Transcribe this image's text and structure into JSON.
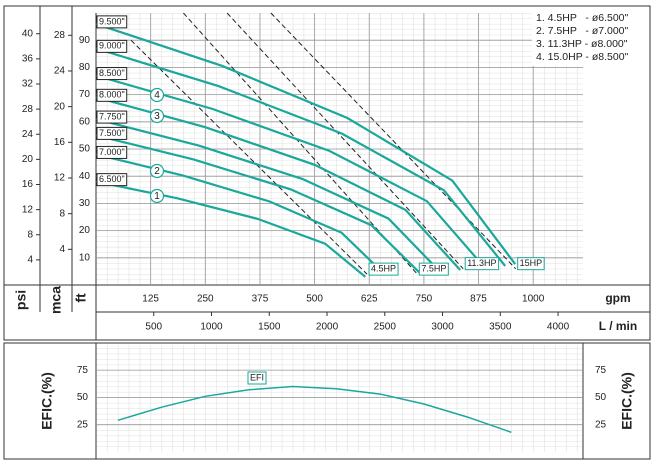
{
  "chart_data": [
    {
      "type": "line",
      "x_label": "gpm",
      "x2_label": "L / min",
      "y_label": "ft",
      "y2_label": "psi",
      "y3_label": "mca",
      "xlim": [
        0,
        1114
      ],
      "xticks": [
        125,
        250,
        375,
        500,
        625,
        750,
        875,
        1000
      ],
      "x2lim": [
        0,
        4216
      ],
      "x2ticks": [
        500,
        1000,
        1500,
        2000,
        2500,
        3000,
        3500,
        4000
      ],
      "ylim": [
        0,
        100
      ],
      "yticks": [
        10,
        20,
        30,
        40,
        50,
        60,
        70,
        80,
        90
      ],
      "y2lim": [
        0,
        43.3
      ],
      "y2ticks": [
        4,
        8,
        12,
        16,
        20,
        24,
        28,
        32,
        36,
        40
      ],
      "y3lim": [
        0,
        30.5
      ],
      "y3ticks": [
        4,
        8,
        12,
        16,
        20,
        24,
        28
      ],
      "grid": true,
      "series": [
        {
          "name": "6.500\"",
          "color": "#1aa89a",
          "x": [
            0,
            185,
            370,
            524,
            616
          ],
          "values": [
            38,
            31.9,
            24.3,
            15.2,
            3
          ]
        },
        {
          "name": "7.000\"",
          "color": "#1aa89a",
          "x": [
            0,
            198,
            397,
            562,
            661
          ],
          "values": [
            48,
            40.3,
            30.7,
            19.2,
            3.8
          ]
        },
        {
          "name": "7.500\"",
          "color": "#1aa89a",
          "x": [
            0,
            222,
            445,
            630,
            741
          ],
          "values": [
            55,
            46.2,
            35.2,
            22,
            4.4
          ]
        },
        {
          "name": "7.750\"",
          "color": "#1aa89a",
          "x": [
            0,
            236,
            472,
            669,
            787
          ],
          "values": [
            61,
            51.2,
            39,
            24.4,
            4.9
          ]
        },
        {
          "name": "8.000\"",
          "color": "#1aa89a",
          "x": [
            0,
            250,
            500,
            708,
            833
          ],
          "values": [
            69,
            58,
            44.2,
            27.6,
            5.5
          ]
        },
        {
          "name": "8.500\"",
          "color": "#1aa89a",
          "x": [
            0,
            267,
            534,
            757,
            890
          ],
          "values": [
            77,
            64.7,
            49.3,
            30.8,
            6.2
          ]
        },
        {
          "name": "9.000\"",
          "color": "#1aa89a",
          "x": [
            0,
            281,
            562,
            796,
            936
          ],
          "values": [
            87,
            73.1,
            55.7,
            34.8,
            7
          ]
        },
        {
          "name": "9.500\"",
          "color": "#1aa89a",
          "x": [
            0,
            288,
            575,
            815,
            959
          ],
          "values": [
            96,
            80.6,
            61.4,
            38.4,
            7.7
          ]
        }
      ],
      "hp_lines": [
        {
          "name": "4.5HP",
          "x": [
            80,
            620
          ],
          "values": [
            90,
            4
          ]
        },
        {
          "name": "7.5HP",
          "x": [
            200,
            735
          ],
          "values": [
            100,
            4
          ]
        },
        {
          "name": "11.3HP",
          "x": [
            300,
            840
          ],
          "values": [
            100,
            6
          ]
        },
        {
          "name": "15HP",
          "x": [
            400,
            960
          ],
          "values": [
            100,
            6
          ]
        }
      ],
      "markers": [
        "1",
        "2",
        "3",
        "4"
      ],
      "legend": [
        "1. 4.5HP   - ø6.500\"",
        "2. 7.5HP   - ø7.000\"",
        "3. 11.3HP - ø8.000\"",
        "4. 15.0HP - ø8.500\""
      ]
    },
    {
      "type": "line",
      "y_label": "EFIC.(%)",
      "xlim": [
        0,
        1114
      ],
      "ylim": [
        0,
        98
      ],
      "yticks": [
        25,
        50,
        75
      ],
      "grid": true,
      "series": [
        {
          "name": "EFI",
          "color": "#1aa89a",
          "x": [
            50,
            150,
            250,
            350,
            450,
            550,
            650,
            750,
            850,
            950
          ],
          "values": [
            29,
            41,
            51,
            57,
            60,
            58,
            53,
            44,
            32,
            18
          ]
        }
      ]
    }
  ]
}
